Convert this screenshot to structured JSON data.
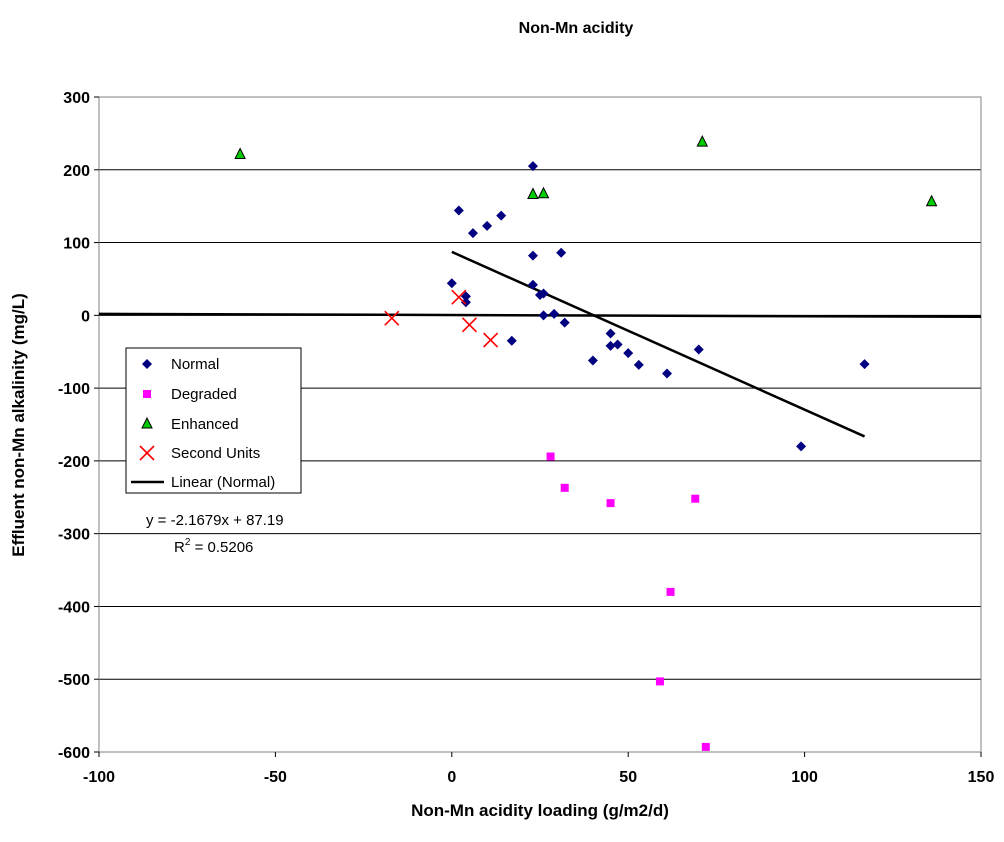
{
  "chart_data": {
    "type": "scatter",
    "title": "Non-Mn acidity",
    "xlabel": "Non-Mn acidity loading (g/m2/d)",
    "ylabel": "Effluent non-Mn alkalinity (mg/L)",
    "xlim": [
      -100,
      150
    ],
    "ylim": [
      -600,
      300
    ],
    "xticks": [
      -100,
      -50,
      0,
      50,
      100,
      150
    ],
    "yticks": [
      300,
      200,
      100,
      0,
      -100,
      -200,
      -300,
      -400,
      -500,
      -600
    ],
    "grid": "horizontal",
    "legend_position": "left-middle",
    "colors": {
      "normal": "#000080",
      "degraded": "#ff00ff",
      "enhanced": "#00cc00",
      "second_units": "#ff0000",
      "trendline": "#000000",
      "zero_line": "#000000"
    },
    "series": [
      {
        "name": "Normal",
        "marker": "diamond",
        "points": [
          [
            0,
            44
          ],
          [
            2,
            144
          ],
          [
            4,
            26
          ],
          [
            4,
            18
          ],
          [
            6,
            113
          ],
          [
            10,
            123
          ],
          [
            14,
            137
          ],
          [
            17,
            -35
          ],
          [
            23,
            205
          ],
          [
            23,
            82
          ],
          [
            23,
            42
          ],
          [
            25,
            28
          ],
          [
            26,
            0
          ],
          [
            26,
            30
          ],
          [
            29,
            2
          ],
          [
            31,
            86
          ],
          [
            32,
            -10
          ],
          [
            40,
            -62
          ],
          [
            45,
            -25
          ],
          [
            45,
            -42
          ],
          [
            47,
            -40
          ],
          [
            50,
            -52
          ],
          [
            53,
            -68
          ],
          [
            61,
            -80
          ],
          [
            70,
            -47
          ],
          [
            99,
            -180
          ],
          [
            117,
            -67
          ]
        ]
      },
      {
        "name": "Degraded",
        "marker": "square",
        "points": [
          [
            28,
            -194
          ],
          [
            32,
            -237
          ],
          [
            45,
            -258
          ],
          [
            59,
            -503
          ],
          [
            62,
            -380
          ],
          [
            69,
            -252
          ],
          [
            72,
            -593
          ]
        ]
      },
      {
        "name": "Enhanced",
        "marker": "triangle",
        "points": [
          [
            -60,
            221
          ],
          [
            23,
            166
          ],
          [
            26,
            167
          ],
          [
            71,
            238
          ],
          [
            136,
            156
          ]
        ]
      },
      {
        "name": "Second Units",
        "marker": "x",
        "points": [
          [
            -17,
            -4
          ],
          [
            2,
            25
          ],
          [
            5,
            -13
          ],
          [
            11,
            -34
          ]
        ]
      },
      {
        "name": "Linear (Normal)",
        "type": "line",
        "x": [
          0,
          117
        ],
        "y": [
          87.19,
          -166.4
        ]
      }
    ],
    "zero_line": {
      "x": [
        -100,
        150
      ],
      "y": [
        2,
        -2
      ]
    },
    "annotation": {
      "equation": "y = -2.1679x + 87.19",
      "r2_prefix": "R",
      "r2_sup": "2",
      "r2_value": " = 0.5206"
    }
  }
}
